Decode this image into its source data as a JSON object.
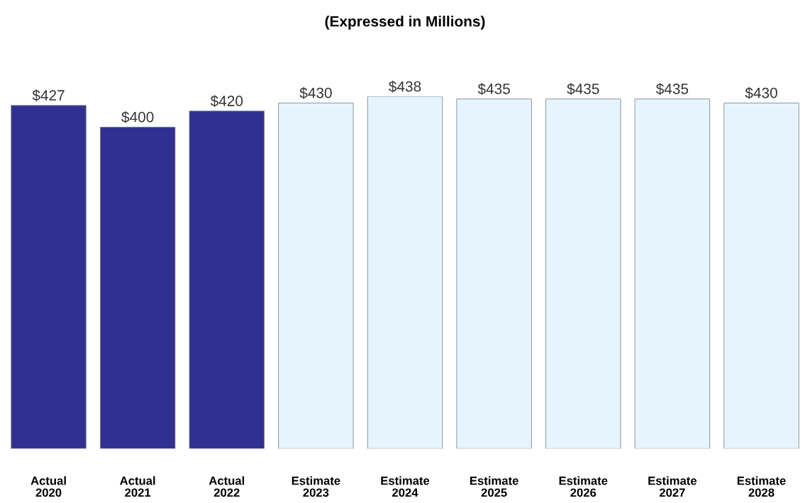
{
  "chart_data": {
    "type": "bar",
    "title": "(Expressed in Millions)",
    "categories": [
      "Actual\n2020",
      "Actual\n2021",
      "Actual\n2022",
      "Estimate\n2023",
      "Estimate\n2024",
      "Estimate\n2025",
      "Estimate\n2026",
      "Estimate\n2027",
      "Estimate\n2028"
    ],
    "values": [
      427,
      400,
      420,
      430,
      438,
      435,
      435,
      435,
      430
    ],
    "value_labels": [
      "$427",
      "$400",
      "$420",
      "$430",
      "$438",
      "$435",
      "$435",
      "$435",
      "$430"
    ],
    "colors": [
      "#303090",
      "#303090",
      "#303090",
      "#e6f4fd",
      "#e6f4fd",
      "#e6f4fd",
      "#e6f4fd",
      "#e6f4fd",
      "#e6f4fd"
    ],
    "grid": false,
    "legend": false
  }
}
